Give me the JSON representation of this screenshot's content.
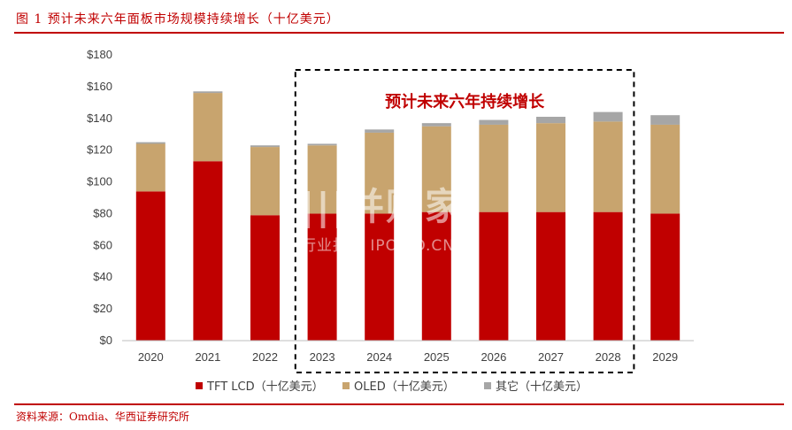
{
  "figure": {
    "title": "图 1   预计未来六年面板市场规模持续增长（十亿美元）",
    "source": "资料来源：Omdia、华西证券研究所"
  },
  "watermark": {
    "main": "|||并购家",
    "sub": "行业报告 IPOIPO.CN"
  },
  "colors": {
    "tft": "#c00000",
    "oled": "#c8a46e",
    "other": "#a6a6a6",
    "accent": "#c00000"
  },
  "chart_data": {
    "type": "bar",
    "stacked": true,
    "categories": [
      "2020",
      "2021",
      "2022",
      "2023",
      "2024",
      "2025",
      "2026",
      "2027",
      "2028",
      "2029"
    ],
    "series": [
      {
        "name": "TFT LCD（十亿美元）",
        "color": "#c00000",
        "values": [
          94,
          113,
          79,
          80,
          80,
          81,
          81,
          81,
          81,
          80
        ]
      },
      {
        "name": "OLED（十亿美元）",
        "color": "#c8a46e",
        "values": [
          30,
          43,
          43,
          43,
          51,
          54,
          55,
          56,
          57,
          56
        ]
      },
      {
        "name": "其它（十亿美元）",
        "color": "#a6a6a6",
        "values": [
          1,
          1,
          1,
          1,
          2,
          2,
          3,
          4,
          6,
          6
        ]
      }
    ],
    "yticks": [
      "$0",
      "$20",
      "$40",
      "$60",
      "$80",
      "$100",
      "$120",
      "$140",
      "$160",
      "$180"
    ],
    "ylim": [
      0,
      180
    ],
    "annotation": {
      "text": "预计未来六年持续增长",
      "range": [
        "2023",
        "2028"
      ]
    },
    "legend_position": "bottom",
    "grid": false
  }
}
